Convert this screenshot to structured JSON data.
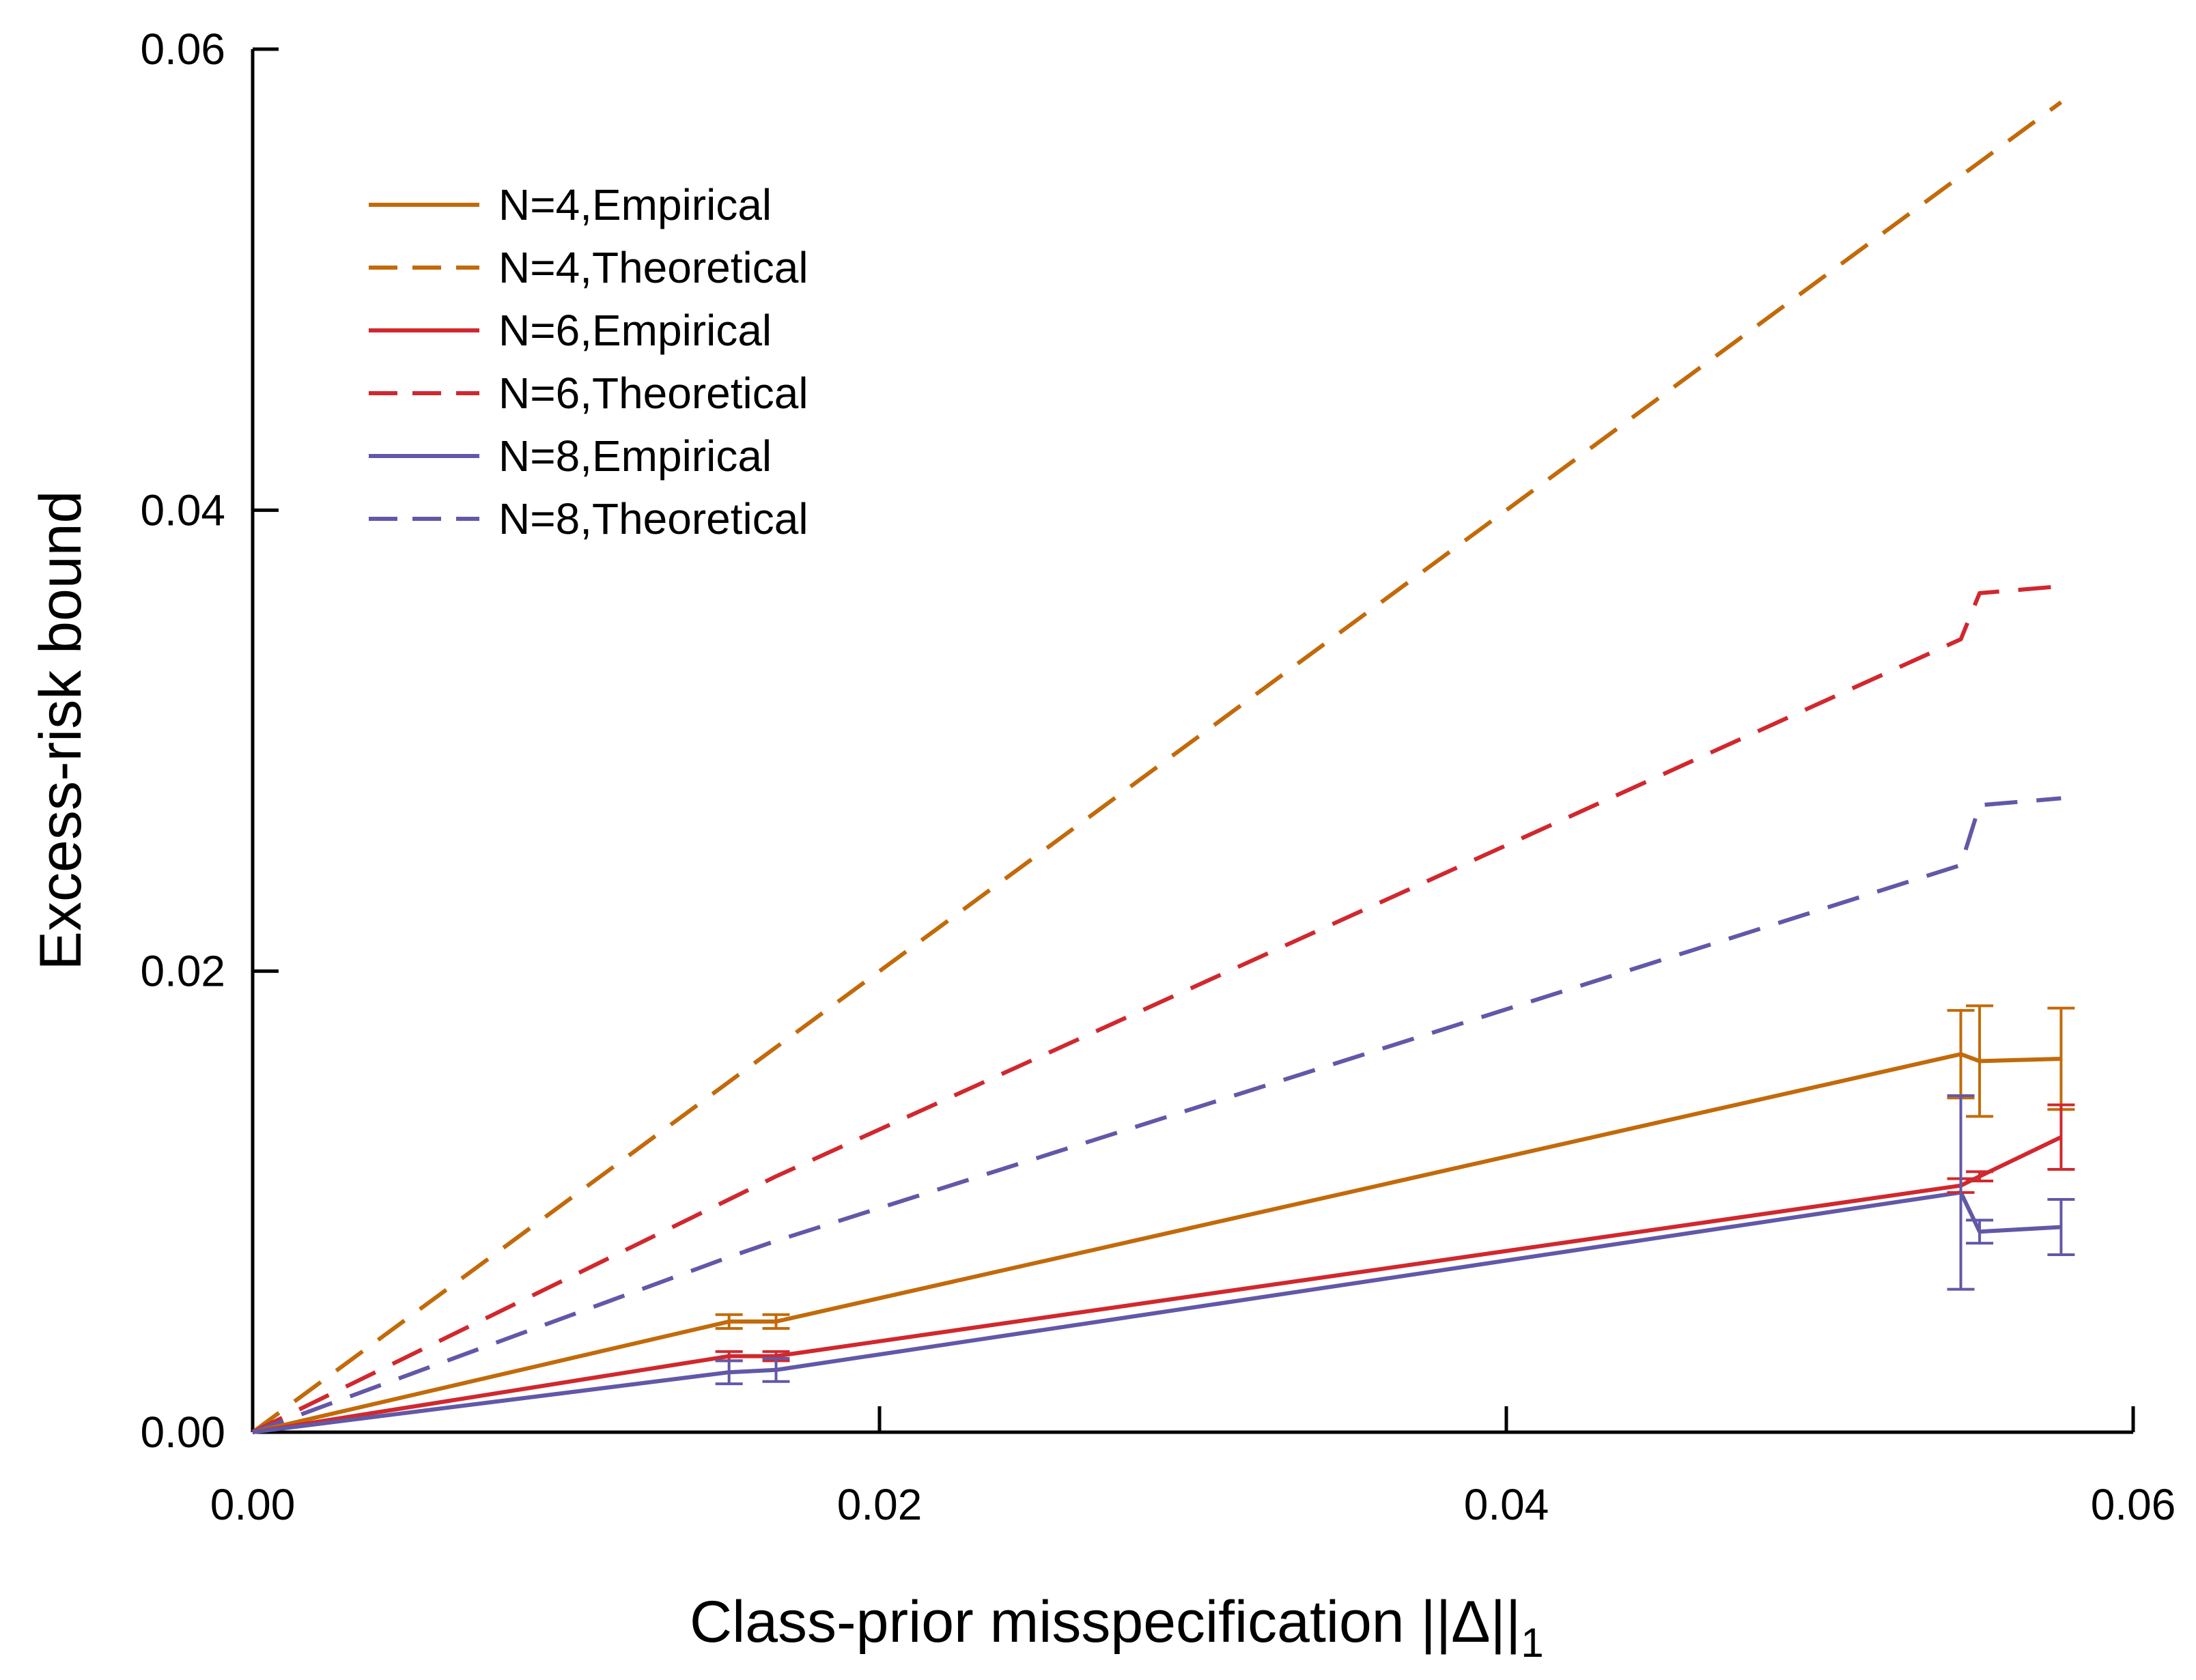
{
  "chart_data": {
    "type": "line",
    "xlabel_main": "Class-prior misspecification ||Δ||",
    "xlabel_sub": "1",
    "ylabel": "Excess-risk bound",
    "xlim": [
      0.0,
      0.06
    ],
    "ylim": [
      0.0,
      0.06
    ],
    "x_ticks": [
      "0.00",
      "0.02",
      "0.04",
      "0.06"
    ],
    "y_ticks": [
      "0.00",
      "0.02",
      "0.04",
      "0.06"
    ],
    "grid": false,
    "legend_position": "top-left",
    "series": [
      {
        "name": "N=4,Empirical",
        "color": "#C26A0A",
        "dash": "solid",
        "x": [
          0.0,
          0.0152,
          0.0167,
          0.0545,
          0.0551,
          0.0577
        ],
        "y": [
          0.0,
          0.0048,
          0.0048,
          0.0164,
          0.0161,
          0.0162
        ],
        "err": [
          0.0,
          0.0003,
          0.0003,
          0.0019,
          0.0024,
          0.0022
        ]
      },
      {
        "name": "N=4,Theoretical",
        "color": "#C26A0A",
        "dash": "dashed",
        "x": [
          0.0,
          0.0152,
          0.0167,
          0.0545,
          0.0551,
          0.0577
        ],
        "y": [
          0.0,
          0.0152,
          0.0167,
          0.0545,
          0.0551,
          0.0577
        ],
        "err": null
      },
      {
        "name": "N=6,Empirical",
        "color": "#D0282E",
        "dash": "solid",
        "x": [
          0.0,
          0.0152,
          0.0167,
          0.0545,
          0.0551,
          0.0577
        ],
        "y": [
          0.0,
          0.0033,
          0.0033,
          0.0107,
          0.0111,
          0.0128
        ],
        "err": [
          0.0,
          0.0002,
          0.0002,
          0.0003,
          0.0002,
          0.0014
        ]
      },
      {
        "name": "N=6,Theoretical",
        "color": "#D0282E",
        "dash": "dashed",
        "x": [
          0.0,
          0.0152,
          0.0167,
          0.0545,
          0.0551,
          0.0577
        ],
        "y": [
          0.0,
          0.0101,
          0.0111,
          0.0344,
          0.0364,
          0.0367
        ],
        "err": null
      },
      {
        "name": "N=8,Empirical",
        "color": "#6258A8",
        "dash": "solid",
        "x": [
          0.0,
          0.0152,
          0.0167,
          0.0545,
          0.0551,
          0.0577
        ],
        "y": [
          0.0,
          0.0026,
          0.0027,
          0.0104,
          0.0087,
          0.0089
        ],
        "err": [
          0.0,
          0.0005,
          0.0005,
          0.0042,
          0.0005,
          0.0012
        ]
      },
      {
        "name": "N=8,Theoretical",
        "color": "#6258A8",
        "dash": "dashed",
        "x": [
          0.0,
          0.0152,
          0.0167,
          0.0545,
          0.0551,
          0.0577
        ],
        "y": [
          0.0,
          0.0076,
          0.0083,
          0.0246,
          0.0272,
          0.0275
        ],
        "err": null
      }
    ]
  }
}
